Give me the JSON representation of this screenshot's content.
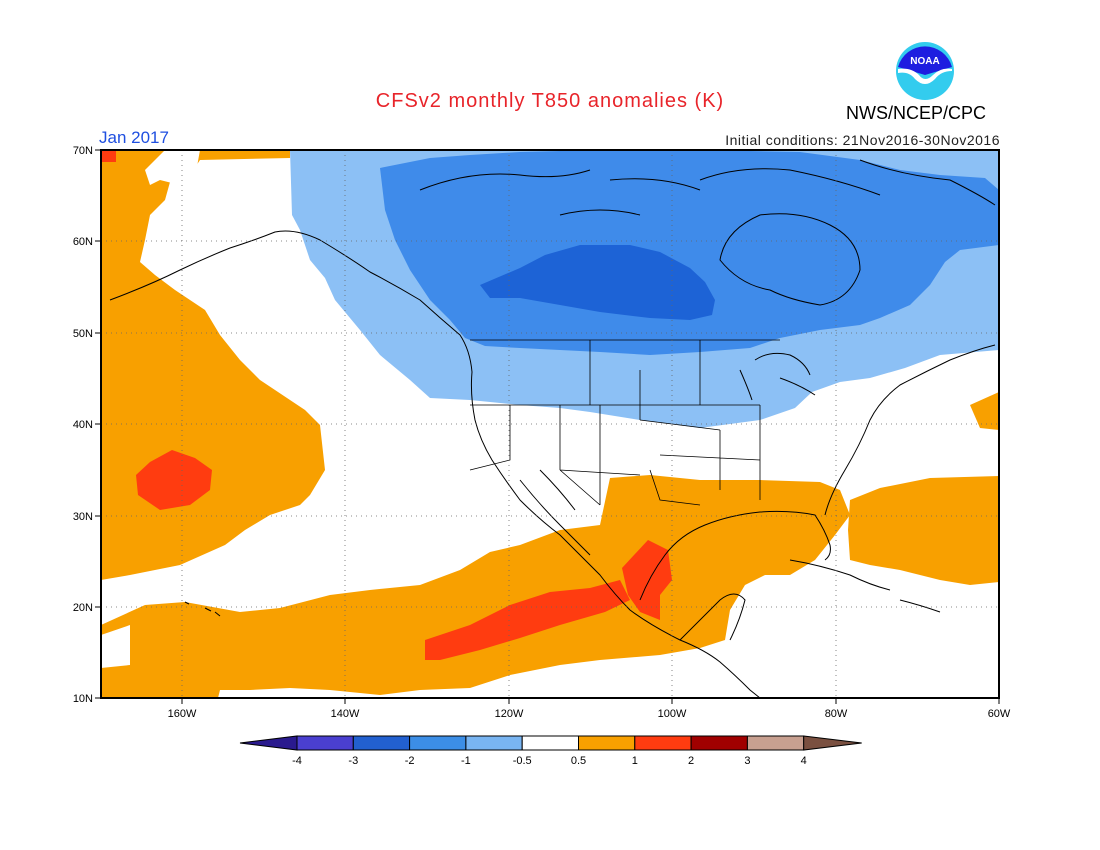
{
  "header": {
    "title": "CFSv2 monthly T850 anomalies (K)",
    "period": "Jan 2017",
    "initial_conditions": "Initial conditions: 21Nov2016-30Nov2016",
    "agency": "NWS/NCEP/CPC",
    "logo_text": "NOAA"
  },
  "map": {
    "region": "North America and eastern Pacific",
    "lat_labels": [
      "70N",
      "60N",
      "50N",
      "40N",
      "30N",
      "20N",
      "10N"
    ],
    "lon_labels": [
      "160W",
      "140W",
      "120W",
      "100W",
      "80W",
      "60W"
    ],
    "lat_range": [
      10,
      70
    ],
    "lon_range": [
      -171,
      -60
    ],
    "grid": "dotted"
  },
  "colorbar": {
    "labels": [
      "-4",
      "-3",
      "-2",
      "-1",
      "-0.5",
      "0.5",
      "1",
      "2",
      "3",
      "4"
    ],
    "colors": [
      "#2a1a8e",
      "#4a3fd0",
      "#2260d0",
      "#3c8ee6",
      "#79b5f2",
      "#ffffff",
      "#f8a000",
      "#ff3c10",
      "#a00000",
      "#c8a090",
      "#7a5040"
    ]
  },
  "colors": {
    "cool_1": "#8cc0f5",
    "cool_2": "#3f8bea",
    "cool_3": "#1d63d6",
    "warm_1": "#f8a000",
    "warm_2": "#ff3c10",
    "title": "#e8242a",
    "period": "#1f4fe0"
  }
}
